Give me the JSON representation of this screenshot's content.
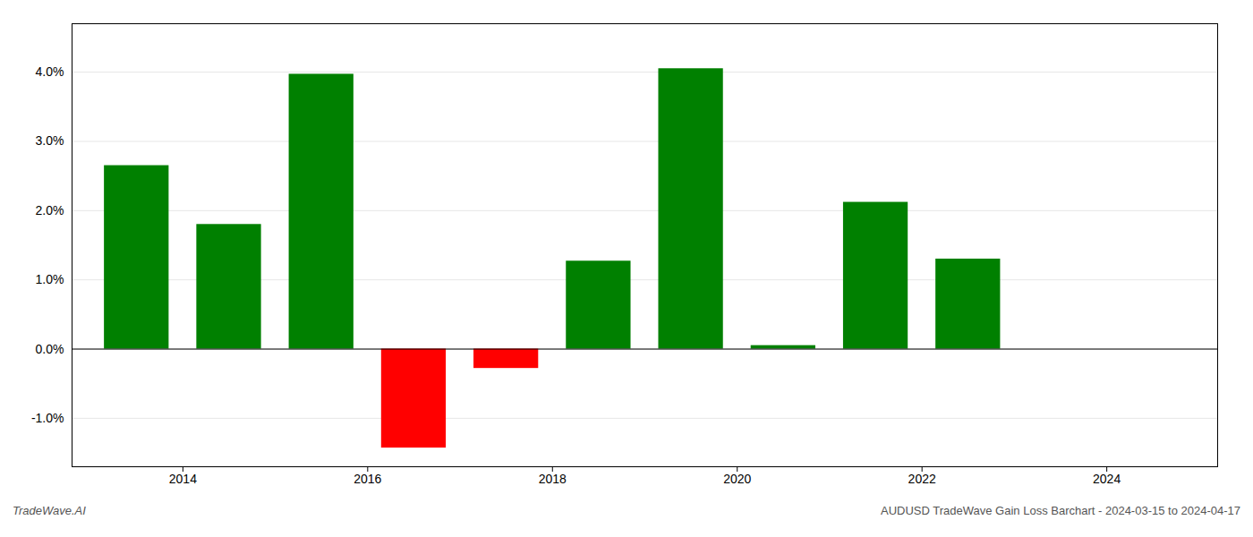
{
  "chart_data": {
    "type": "bar",
    "x": [
      2013.5,
      2014.5,
      2015.5,
      2016.5,
      2017.5,
      2018.5,
      2019.5,
      2020.5,
      2021.5,
      2022.5
    ],
    "values": [
      0.0265,
      0.018,
      0.0397,
      -0.0143,
      -0.0028,
      0.0127,
      0.0405,
      0.0005,
      0.0212,
      0.013
    ],
    "colors": [
      "#008000",
      "#008000",
      "#008000",
      "#ff0000",
      "#ff0000",
      "#008000",
      "#008000",
      "#008000",
      "#008000",
      "#008000"
    ],
    "xlim": [
      2012.8,
      2025.2
    ],
    "xticks": [
      2014,
      2016,
      2018,
      2020,
      2022,
      2024
    ],
    "ylim": [
      -0.017,
      0.047
    ],
    "yticks": [
      {
        "value": -0.01,
        "label": "-1.0%"
      },
      {
        "value": 0.0,
        "label": "0.0%"
      },
      {
        "value": 0.01,
        "label": "1.0%"
      },
      {
        "value": 0.02,
        "label": "2.0%"
      },
      {
        "value": 0.03,
        "label": "3.0%"
      },
      {
        "value": 0.04,
        "label": "4.0%"
      }
    ],
    "grid": true,
    "annotations": [
      "TradeWave.AI",
      "AUDUSD TradeWave Gain Loss Barchart - 2024-03-15 to 2024-04-17"
    ]
  }
}
